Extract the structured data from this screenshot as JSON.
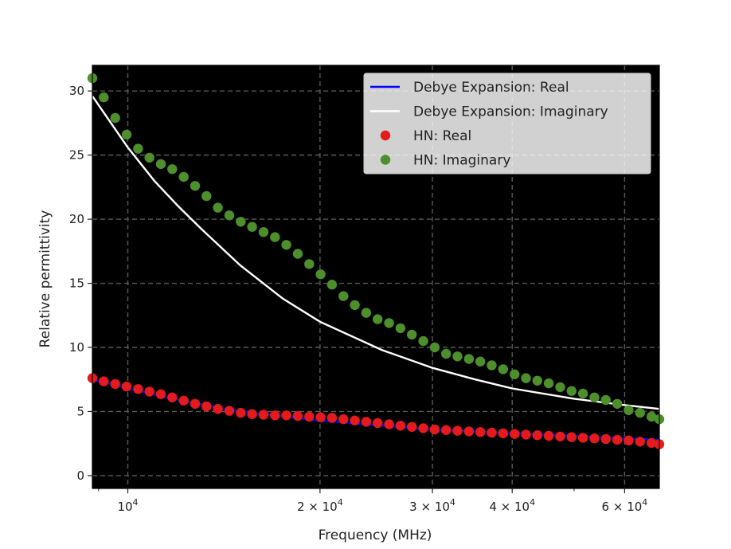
{
  "chart_data": {
    "type": "scatter",
    "title": "",
    "xlabel": "Frequency (MHz)",
    "ylabel": "Relative permittivity",
    "xscale": "log",
    "xlim": [
      8800,
      68000
    ],
    "ylim": [
      -1,
      32
    ],
    "grid": true,
    "grid_style": "dashed",
    "plot_background": "#000000",
    "legend_position": "top-right",
    "x_ticks": [
      {
        "value": 10000,
        "base": "10",
        "exp": "4",
        "coef": ""
      },
      {
        "value": 20000,
        "base": "10",
        "exp": "4",
        "coef": "2 × "
      },
      {
        "value": 30000,
        "base": "10",
        "exp": "4",
        "coef": "3 × "
      },
      {
        "value": 40000,
        "base": "10",
        "exp": "4",
        "coef": "4 × "
      },
      {
        "value": 60000,
        "base": "10",
        "exp": "4",
        "coef": "6 × "
      }
    ],
    "x_minor_ticks": [
      9000,
      50000
    ],
    "y_ticks": [
      0,
      5,
      10,
      15,
      20,
      25,
      30
    ],
    "legend": [
      {
        "label": "Debye Expansion: Real",
        "kind": "line",
        "color": "#0000ff"
      },
      {
        "label": "Debye Expansion: Imaginary",
        "kind": "line",
        "color": "#ffffff"
      },
      {
        "label": "HN: Real",
        "kind": "marker",
        "color": "#e41a1c"
      },
      {
        "label": "HN: Imaginary",
        "kind": "marker",
        "color": "#4d8f2a"
      }
    ],
    "series": [
      {
        "name": "Debye Expansion: Real",
        "kind": "line",
        "color": "#0000ff",
        "x": [
          8800,
          10000,
          12000,
          15000,
          20000,
          25000,
          30000,
          40000,
          50000,
          60000,
          68000
        ],
        "y": [
          7.5,
          6.8,
          5.9,
          5.0,
          4.3,
          3.9,
          3.6,
          3.3,
          3.1,
          2.9,
          2.8
        ]
      },
      {
        "name": "Debye Expansion: Imaginary",
        "kind": "line",
        "color": "#ffffff",
        "x": [
          8800,
          10000,
          11000,
          12000,
          13000,
          15000,
          17500,
          20000,
          25000,
          30000,
          35000,
          40000,
          50000,
          60000,
          68000
        ],
        "y": [
          29.6,
          25.6,
          23.0,
          21.0,
          19.3,
          16.4,
          13.8,
          12.0,
          9.8,
          8.4,
          7.5,
          6.8,
          6.0,
          5.5,
          5.2
        ]
      },
      {
        "name": "HN: Real",
        "kind": "marker",
        "color": "#e41a1c",
        "x": [
          8800,
          9170,
          9556,
          9957,
          10376,
          10812,
          11266,
          11739,
          12232,
          12746,
          13282,
          13839,
          14421,
          15026,
          15658,
          16315,
          17001,
          17715,
          18459,
          19234,
          20042,
          20884,
          21761,
          22675,
          23628,
          24620,
          25654,
          26732,
          27855,
          29025,
          30244,
          31514,
          32838,
          34217,
          35654,
          37152,
          38712,
          40338,
          42033,
          43798,
          45638,
          47555,
          49552,
          51633,
          53802,
          56062,
          58416,
          60870,
          63426,
          66090,
          68000
        ],
        "y": [
          7.6,
          7.35,
          7.15,
          6.95,
          6.75,
          6.55,
          6.35,
          6.1,
          5.85,
          5.6,
          5.4,
          5.2,
          5.05,
          4.9,
          4.8,
          4.75,
          4.7,
          4.7,
          4.65,
          4.6,
          4.55,
          4.5,
          4.4,
          4.3,
          4.2,
          4.1,
          4.0,
          3.9,
          3.8,
          3.7,
          3.6,
          3.55,
          3.5,
          3.45,
          3.4,
          3.35,
          3.3,
          3.25,
          3.2,
          3.15,
          3.1,
          3.05,
          3.0,
          2.95,
          2.9,
          2.85,
          2.8,
          2.75,
          2.65,
          2.55,
          2.45
        ]
      },
      {
        "name": "HN: Imaginary",
        "kind": "marker",
        "color": "#4d8f2a",
        "x": [
          8800,
          9170,
          9556,
          9957,
          10376,
          10812,
          11266,
          11739,
          12232,
          12746,
          13282,
          13839,
          14421,
          15026,
          15658,
          16315,
          17001,
          17715,
          18459,
          19234,
          20042,
          20884,
          21761,
          22675,
          23628,
          24620,
          25654,
          26732,
          27855,
          29025,
          30244,
          31514,
          32838,
          34217,
          35654,
          37152,
          38712,
          40338,
          42033,
          43798,
          45638,
          47555,
          49552,
          51633,
          53802,
          56062,
          58416,
          60870,
          63426,
          66090,
          68000
        ],
        "y": [
          31.0,
          29.5,
          27.9,
          26.6,
          25.5,
          24.8,
          24.3,
          23.9,
          23.3,
          22.6,
          21.8,
          20.9,
          20.3,
          19.8,
          19.4,
          19.0,
          18.6,
          18.0,
          17.3,
          16.5,
          15.7,
          14.9,
          14.0,
          13.3,
          12.7,
          12.2,
          11.9,
          11.5,
          11.0,
          10.5,
          10.0,
          9.5,
          9.3,
          9.1,
          8.9,
          8.6,
          8.3,
          7.9,
          7.6,
          7.4,
          7.2,
          6.9,
          6.6,
          6.4,
          6.1,
          5.9,
          5.6,
          5.1,
          4.9,
          4.6,
          4.4
        ]
      }
    ]
  }
}
